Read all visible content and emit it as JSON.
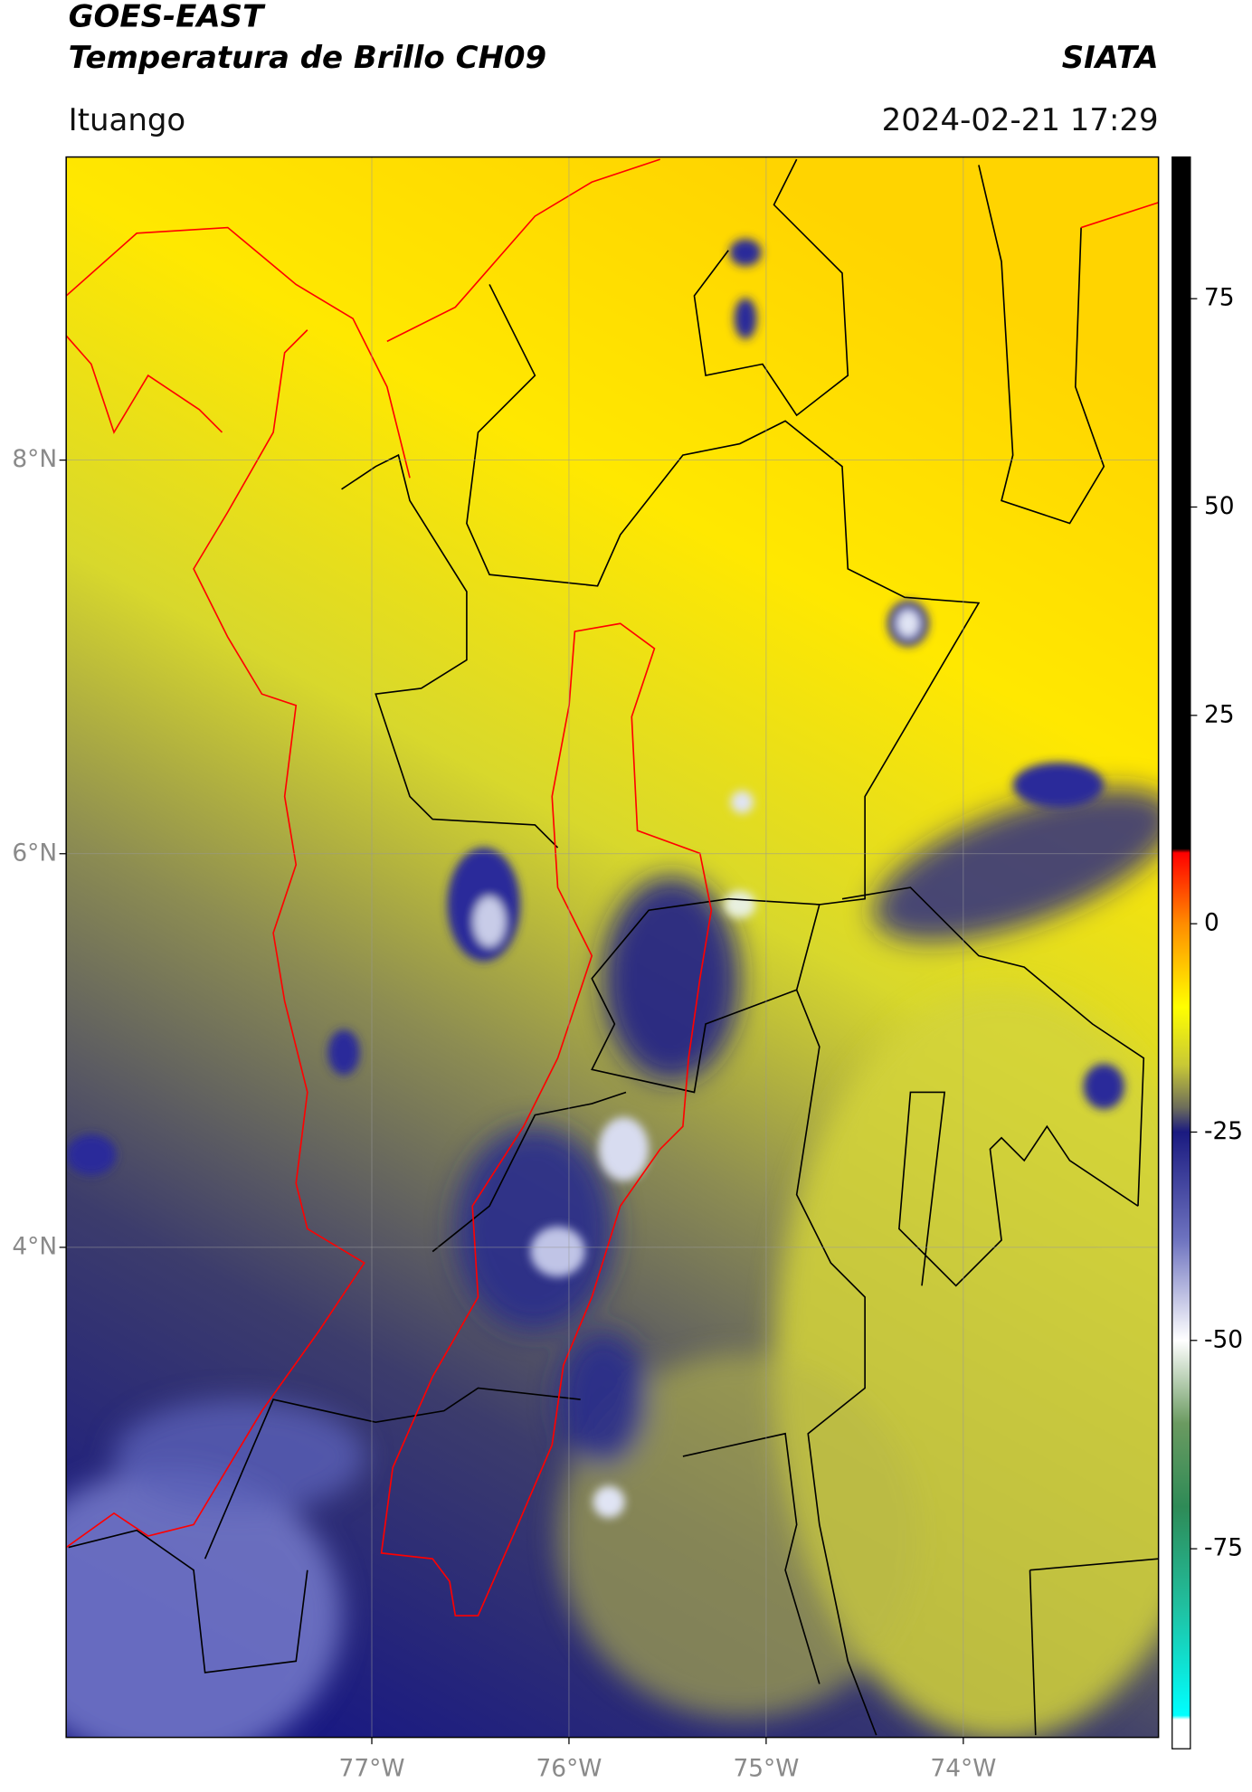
{
  "header": {
    "title": "GOES-EAST",
    "subtitle": "Temperatura de Brillo CH09",
    "brand": "SIATA",
    "location": "Ituango",
    "timestamp": "2024-02-21 17:29"
  },
  "map": {
    "xlim": [
      -78.55,
      -73.01
    ],
    "ylim": [
      1.51,
      9.54
    ],
    "xticks": [
      {
        "value": -77,
        "label": "77°W"
      },
      {
        "value": -76,
        "label": "76°W"
      },
      {
        "value": -75,
        "label": "75°W"
      },
      {
        "value": -74,
        "label": "74°W"
      }
    ],
    "yticks": [
      {
        "value": 8,
        "label": "8°N"
      },
      {
        "value": 6,
        "label": "6°N"
      },
      {
        "value": 4,
        "label": "4°N"
      }
    ],
    "grid": true
  },
  "colorbar": {
    "ylim": [
      -99,
      92
    ],
    "yticks": [
      75,
      50,
      25,
      0,
      -25,
      -50,
      -75
    ],
    "colormap": [
      {
        "value": 92,
        "color": "#000000"
      },
      {
        "value": 9,
        "color": "#000000"
      },
      {
        "value": 8.5,
        "color": "#ff0000"
      },
      {
        "value": 0,
        "color": "#ff8c00"
      },
      {
        "value": -10,
        "color": "#ffff00"
      },
      {
        "value": -17,
        "color": "#c8c836"
      },
      {
        "value": -22,
        "color": "#6e6e5a"
      },
      {
        "value": -25,
        "color": "#1a1a80"
      },
      {
        "value": -38,
        "color": "#6f74c0"
      },
      {
        "value": -50,
        "color": "#ffffff"
      },
      {
        "value": -60,
        "color": "#6a9a60"
      },
      {
        "value": -70,
        "color": "#2e8b57"
      },
      {
        "value": -82,
        "color": "#20c0a0"
      },
      {
        "value": -95,
        "color": "#00ffff"
      },
      {
        "value": -95.5,
        "color": "#ffffff"
      },
      {
        "value": -99,
        "color": "#ffffff"
      }
    ]
  }
}
